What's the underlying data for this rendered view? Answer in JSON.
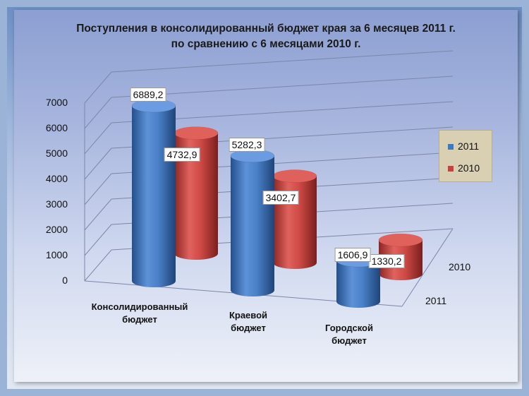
{
  "chart_data": {
    "type": "bar",
    "title": "Поступления в консолидированный бюджет края за 6 месяцев 2011 г.",
    "subtitle": "по сравнению с 6 месяцами 2010 г.",
    "categories": [
      "Консолидированный бюджет",
      "Краевой бюджет",
      "Городской бюджет"
    ],
    "category_lines": [
      [
        "Консолидированный",
        "бюджет"
      ],
      [
        "Краевой",
        "бюджет"
      ],
      [
        "Городской",
        "бюджет"
      ]
    ],
    "series": [
      {
        "name": "2011",
        "values": [
          6889.2,
          5282.3,
          1606.9
        ],
        "labels": [
          "6889,2",
          "5282,3",
          "1606,9"
        ],
        "color": "#3f78c2"
      },
      {
        "name": "2010",
        "values": [
          4732.9,
          3402.7,
          1330.2
        ],
        "labels": [
          "4732,9",
          "3402,7",
          "1330,2"
        ],
        "color": "#c9413f"
      }
    ],
    "depth_labels": [
      "2010",
      "2011"
    ],
    "y_ticks": [
      "0",
      "1000",
      "2000",
      "3000",
      "4000",
      "5000",
      "6000",
      "7000"
    ],
    "ylim": [
      0,
      7000
    ],
    "grid": true,
    "legend_position": "right",
    "style": "3d-cylinder"
  },
  "colors": {
    "series_2011": "#3f78c2",
    "series_2010": "#c9413f",
    "legend_background": "#d9d0b4"
  }
}
